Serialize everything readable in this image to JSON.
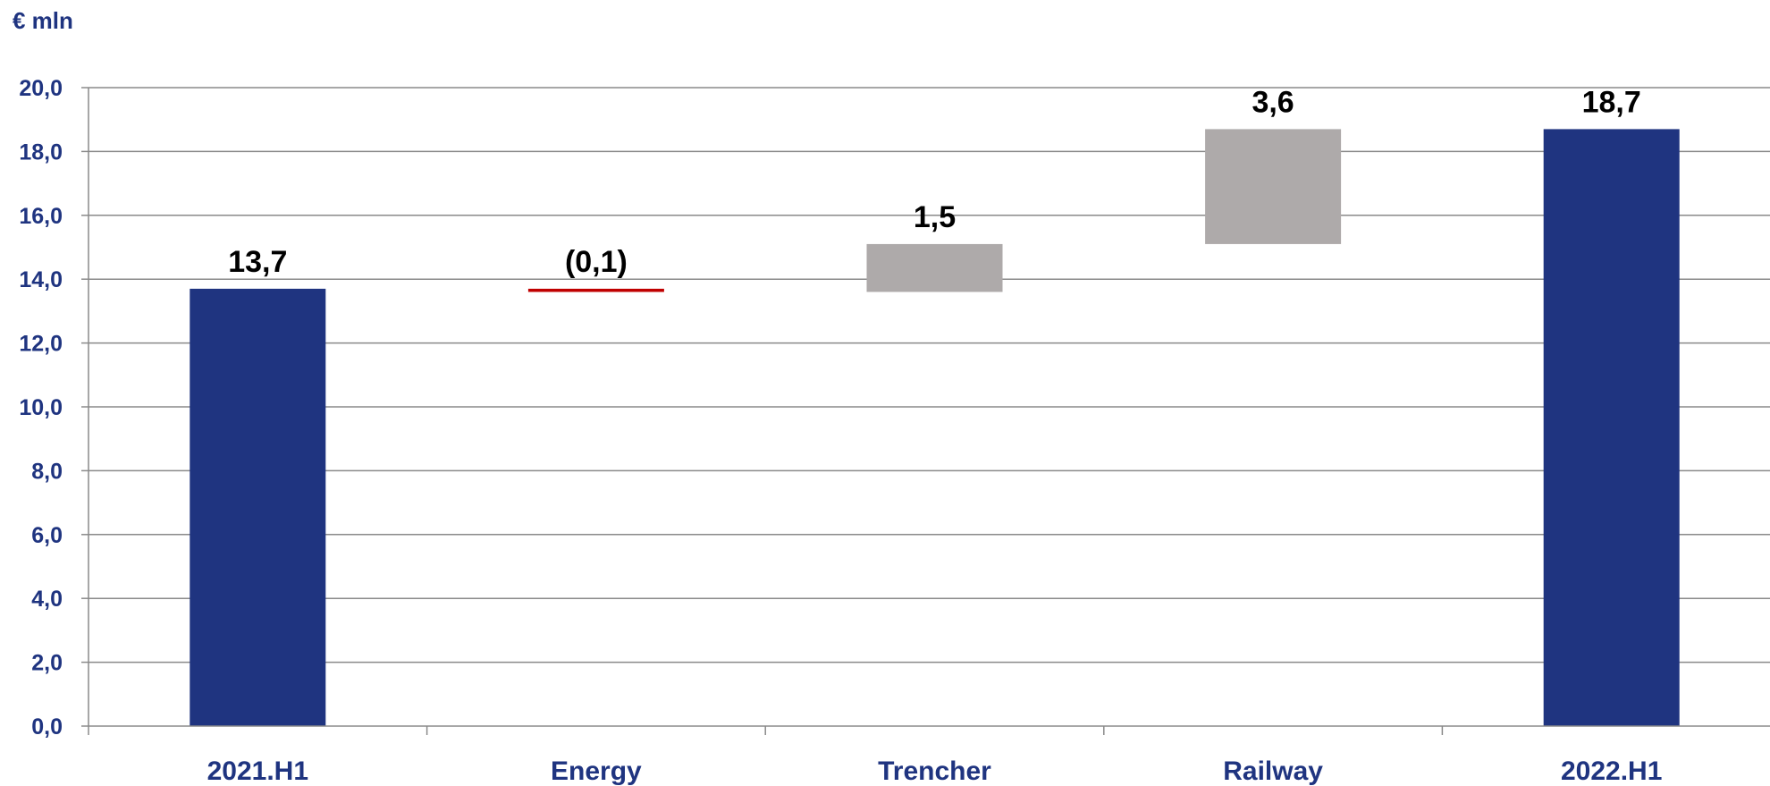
{
  "chart_data": {
    "type": "bar",
    "subtype": "waterfall",
    "unit_label": "€ mln",
    "categories": [
      "2021.H1",
      "Energy",
      "Trencher",
      "Railway",
      "2022.H1"
    ],
    "bars": [
      {
        "category": "2021.H1",
        "kind": "total",
        "start": 0,
        "end": 13.7,
        "label": "13,7",
        "color": "#1f3480"
      },
      {
        "category": "Energy",
        "kind": "decrease",
        "start": 13.7,
        "end": 13.6,
        "label": "(0,1)",
        "color": "#c00000"
      },
      {
        "category": "Trencher",
        "kind": "increase",
        "start": 13.6,
        "end": 15.1,
        "label": "1,5",
        "color": "#aeaaaa"
      },
      {
        "category": "Railway",
        "kind": "increase",
        "start": 15.1,
        "end": 18.7,
        "label": "3,6",
        "color": "#aeaaaa"
      },
      {
        "category": "2022.H1",
        "kind": "total",
        "start": 0,
        "end": 18.7,
        "label": "18,7",
        "color": "#1f3480"
      }
    ],
    "yticks": [
      0,
      2,
      4,
      6,
      8,
      10,
      12,
      14,
      16,
      18,
      20
    ],
    "ytick_labels": [
      "0,0",
      "2,0",
      "4,0",
      "6,0",
      "8,0",
      "10,0",
      "12,0",
      "14,0",
      "16,0",
      "18,0",
      "20,0"
    ],
    "ylim": [
      0,
      20
    ],
    "grid": true,
    "legend": "none"
  }
}
